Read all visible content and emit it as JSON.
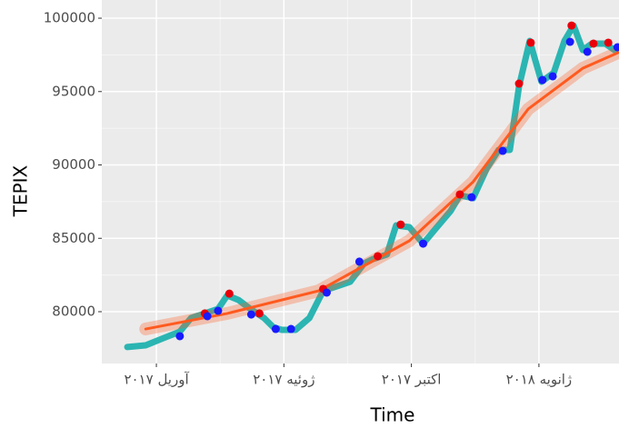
{
  "chart_data": {
    "type": "line",
    "x_label": "Time",
    "y_label": "TEPIX",
    "xlim": [
      2017.143,
      2018.157
    ],
    "ylim": [
      76470,
      101240
    ],
    "xticks": [
      {
        "value": 2017.25,
        "label": "آوریل ۲۰۱۷"
      },
      {
        "value": 2017.5,
        "label": "ژوئیه ۲۰۱۷"
      },
      {
        "value": 2017.75,
        "label": "اکتبر ۲۰۱۷"
      },
      {
        "value": 2018.0,
        "label": "ژانویه ۲۰۱۸"
      }
    ],
    "yticks": [
      80000,
      85000,
      90000,
      95000,
      100000
    ],
    "grid": true,
    "series": [
      {
        "type": "line",
        "color": "#2bb5b2",
        "x": [
          2017.193,
          2017.229,
          2017.264,
          2017.296,
          2017.318,
          2017.345,
          2017.371,
          2017.389,
          2017.411,
          2017.434,
          2017.461,
          2017.479,
          2017.496,
          2017.523,
          2017.55,
          2017.577,
          2017.604,
          2017.63,
          2017.657,
          2017.675,
          2017.702,
          2017.72,
          2017.746,
          2017.773,
          2017.8,
          2017.827,
          2017.845,
          2017.871,
          2017.898,
          2017.921,
          2017.943,
          2017.961,
          2017.982,
          2018.005,
          2018.029,
          2018.05,
          2018.068,
          2018.086,
          2018.104,
          2018.13,
          2018.148
        ],
        "values": [
          77590,
          77710,
          78200,
          78640,
          79570,
          79880,
          80190,
          81110,
          80800,
          80190,
          79570,
          78950,
          78760,
          78760,
          79570,
          81420,
          81730,
          82040,
          83280,
          83590,
          83900,
          85880,
          85760,
          84640,
          85760,
          86870,
          87930,
          87740,
          89780,
          91020,
          91020,
          95360,
          98450,
          95670,
          96280,
          98450,
          99500,
          97830,
          98270,
          98270,
          97830
        ]
      },
      {
        "type": "smooth",
        "color": "#ff5a1f",
        "x": [
          2017.229,
          2017.389,
          2017.568,
          2017.746,
          2017.871,
          2017.979,
          2018.086,
          2018.155
        ],
        "values": [
          78820,
          79880,
          81420,
          84830,
          88850,
          93810,
          96590,
          97650
        ]
      },
      {
        "type": "scatter",
        "color": "#e8000b",
        "x": [
          2017.345,
          2017.393,
          2017.452,
          2017.577,
          2017.684,
          2017.729,
          2017.845,
          2017.961,
          2017.984,
          2018.064,
          2018.107,
          2018.136
        ],
        "values": [
          79880,
          81230,
          79880,
          81550,
          83780,
          85940,
          87990,
          95540,
          98330,
          99500,
          98270,
          98330
        ]
      },
      {
        "type": "scatter",
        "color": "#1a1aff",
        "x": [
          2017.296,
          2017.35,
          2017.371,
          2017.436,
          2017.484,
          2017.514,
          2017.584,
          2017.648,
          2017.773,
          2017.868,
          2017.929,
          2018.007,
          2018.027,
          2018.061,
          2018.095,
          2018.154
        ],
        "values": [
          78330,
          79690,
          80060,
          79810,
          78820,
          78820,
          81300,
          83410,
          84640,
          87800,
          90960,
          95790,
          96040,
          98390,
          97710,
          98020
        ]
      }
    ]
  }
}
